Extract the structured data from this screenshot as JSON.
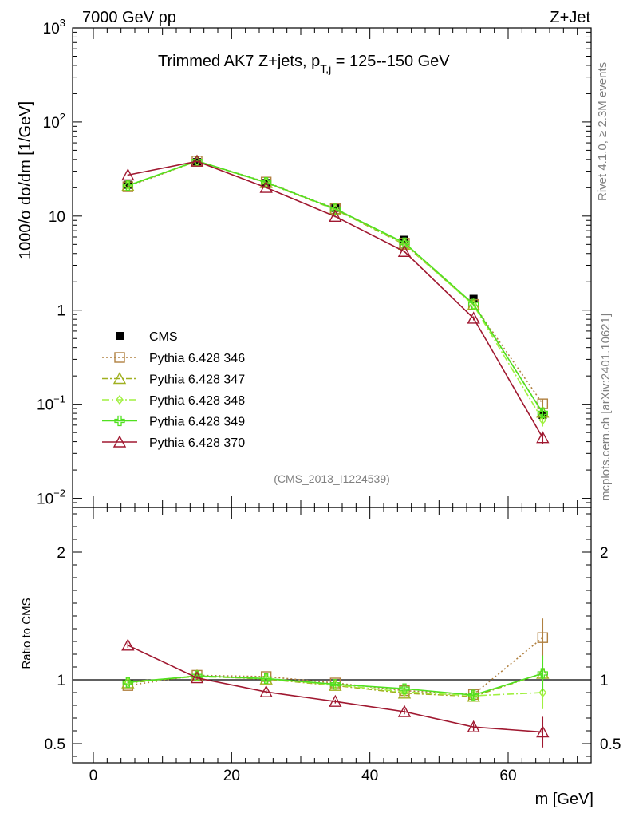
{
  "header": {
    "left": "7000 GeV pp",
    "right": "Z+Jet",
    "title_main": "Trimmed AK7 Z+jets, p",
    "title_sub": "T,j",
    "title_rest": " = 125--150 GeV"
  },
  "side_text": {
    "rivet": "Rivet 4.1.0, ≥ 2.3M events",
    "mcplots": "mcplots.cern.ch [arXiv:2401.10621]"
  },
  "analysis_id": "(CMS_2013_I1224539)",
  "chart_data": [
    {
      "type": "line",
      "name": "main",
      "yscale": "log",
      "ylabel": "1000/σ  dσ/dm [1/GeV]",
      "xlim": [
        -3,
        72
      ],
      "ylim": [
        0.008,
        1000
      ],
      "y_ticks": [
        {
          "value": 0.01,
          "base": "10",
          "exp": "−2"
        },
        {
          "value": 0.1,
          "base": "10",
          "exp": "−1"
        },
        {
          "value": 1,
          "base": "1",
          "exp": ""
        },
        {
          "value": 10,
          "base": "10",
          "exp": ""
        },
        {
          "value": 100,
          "base": "10",
          "exp": "2"
        },
        {
          "value": 1000,
          "base": "10",
          "exp": "3"
        }
      ],
      "x": [
        5,
        15,
        25,
        35,
        45,
        55,
        65
      ],
      "data_series": {
        "name": "CMS",
        "values": [
          21.5,
          37.5,
          22.5,
          12.2,
          5.6,
          1.32,
          0.077
        ],
        "errors": [
          0.6,
          0.6,
          0.5,
          0.3,
          0.15,
          0.05,
          0.008
        ],
        "color": "#000000"
      },
      "series": [
        {
          "name": "Pythia 6.428 346",
          "color": "#b08040",
          "dash": "2,3",
          "marker": "square",
          "values": [
            20.5,
            38.5,
            23.0,
            12.0,
            5.15,
            1.15,
            0.101
          ],
          "errors": [
            0.3,
            0.4,
            0.3,
            0.2,
            0.1,
            0.04,
            0.012
          ]
        },
        {
          "name": "Pythia 6.428 347",
          "color": "#a0b020",
          "dash": "7,3,2,3",
          "marker": "triangle",
          "values": [
            21.0,
            38.3,
            22.6,
            11.7,
            5.0,
            1.14,
            0.082
          ],
          "errors": [
            0.3,
            0.4,
            0.3,
            0.2,
            0.1,
            0.04,
            0.01
          ]
        },
        {
          "name": "Pythia 6.428 348",
          "color": "#a0f040",
          "dash": "9,3,2,3",
          "marker": "diamond",
          "values": [
            21.2,
            38.4,
            22.8,
            11.8,
            5.1,
            1.13,
            0.068
          ],
          "errors": [
            0.3,
            0.4,
            0.3,
            0.2,
            0.1,
            0.04,
            0.01
          ]
        },
        {
          "name": "Pythia 6.428 349",
          "color": "#50e020",
          "dash": "",
          "marker": "cross",
          "values": [
            21.1,
            38.6,
            22.8,
            11.9,
            5.2,
            1.16,
            0.081
          ],
          "errors": [
            0.3,
            0.4,
            0.3,
            0.2,
            0.1,
            0.04,
            0.01
          ]
        },
        {
          "name": "Pythia 6.428 370",
          "color": "#a01830",
          "dash": "",
          "marker": "triangle",
          "values": [
            27.3,
            38.2,
            20.1,
            9.9,
            4.2,
            0.82,
            0.044
          ],
          "errors": [
            0.4,
            0.4,
            0.3,
            0.2,
            0.1,
            0.04,
            0.006
          ]
        }
      ]
    },
    {
      "type": "line",
      "name": "ratio",
      "ylabel": "Ratio to CMS",
      "xlabel": "m [GeV]",
      "xlim": [
        -3,
        72
      ],
      "ylim": [
        0.35,
        2.35
      ],
      "y_ticks": [
        {
          "value": 0.5,
          "label": "0.5"
        },
        {
          "value": 1,
          "label": "1"
        },
        {
          "value": 2,
          "label": "2"
        }
      ],
      "x_ticks": [
        {
          "value": 0,
          "label": "0"
        },
        {
          "value": 20,
          "label": "20"
        },
        {
          "value": 40,
          "label": "40"
        },
        {
          "value": 60,
          "label": "60"
        }
      ],
      "x": [
        5,
        15,
        25,
        35,
        45,
        55,
        65
      ],
      "series": [
        {
          "name": "Pythia 6.428 346",
          "values": [
            0.955,
            1.035,
            1.025,
            0.975,
            0.915,
            0.885,
            1.33
          ],
          "errors": [
            0.02,
            0.015,
            0.015,
            0.015,
            0.02,
            0.03,
            0.15
          ]
        },
        {
          "name": "Pythia 6.428 347",
          "values": [
            0.975,
            1.03,
            1.005,
            0.955,
            0.895,
            0.87,
            1.05
          ],
          "errors": [
            0.02,
            0.015,
            0.015,
            0.015,
            0.02,
            0.03,
            0.13
          ]
        },
        {
          "name": "Pythia 6.428 348",
          "values": [
            0.985,
            1.025,
            1.01,
            0.96,
            0.905,
            0.875,
            0.9
          ],
          "errors": [
            0.02,
            0.015,
            0.015,
            0.015,
            0.02,
            0.03,
            0.13
          ]
        },
        {
          "name": "Pythia 6.428 349",
          "values": [
            0.98,
            1.03,
            1.01,
            0.965,
            0.93,
            0.88,
            1.05
          ],
          "errors": [
            0.02,
            0.015,
            0.015,
            0.015,
            0.02,
            0.03,
            0.14
          ]
        },
        {
          "name": "Pythia 6.428 370",
          "values": [
            1.27,
            1.015,
            0.905,
            0.83,
            0.75,
            0.63,
            0.59
          ],
          "errors": [
            0.02,
            0.015,
            0.015,
            0.015,
            0.02,
            0.03,
            0.12
          ]
        }
      ]
    }
  ]
}
